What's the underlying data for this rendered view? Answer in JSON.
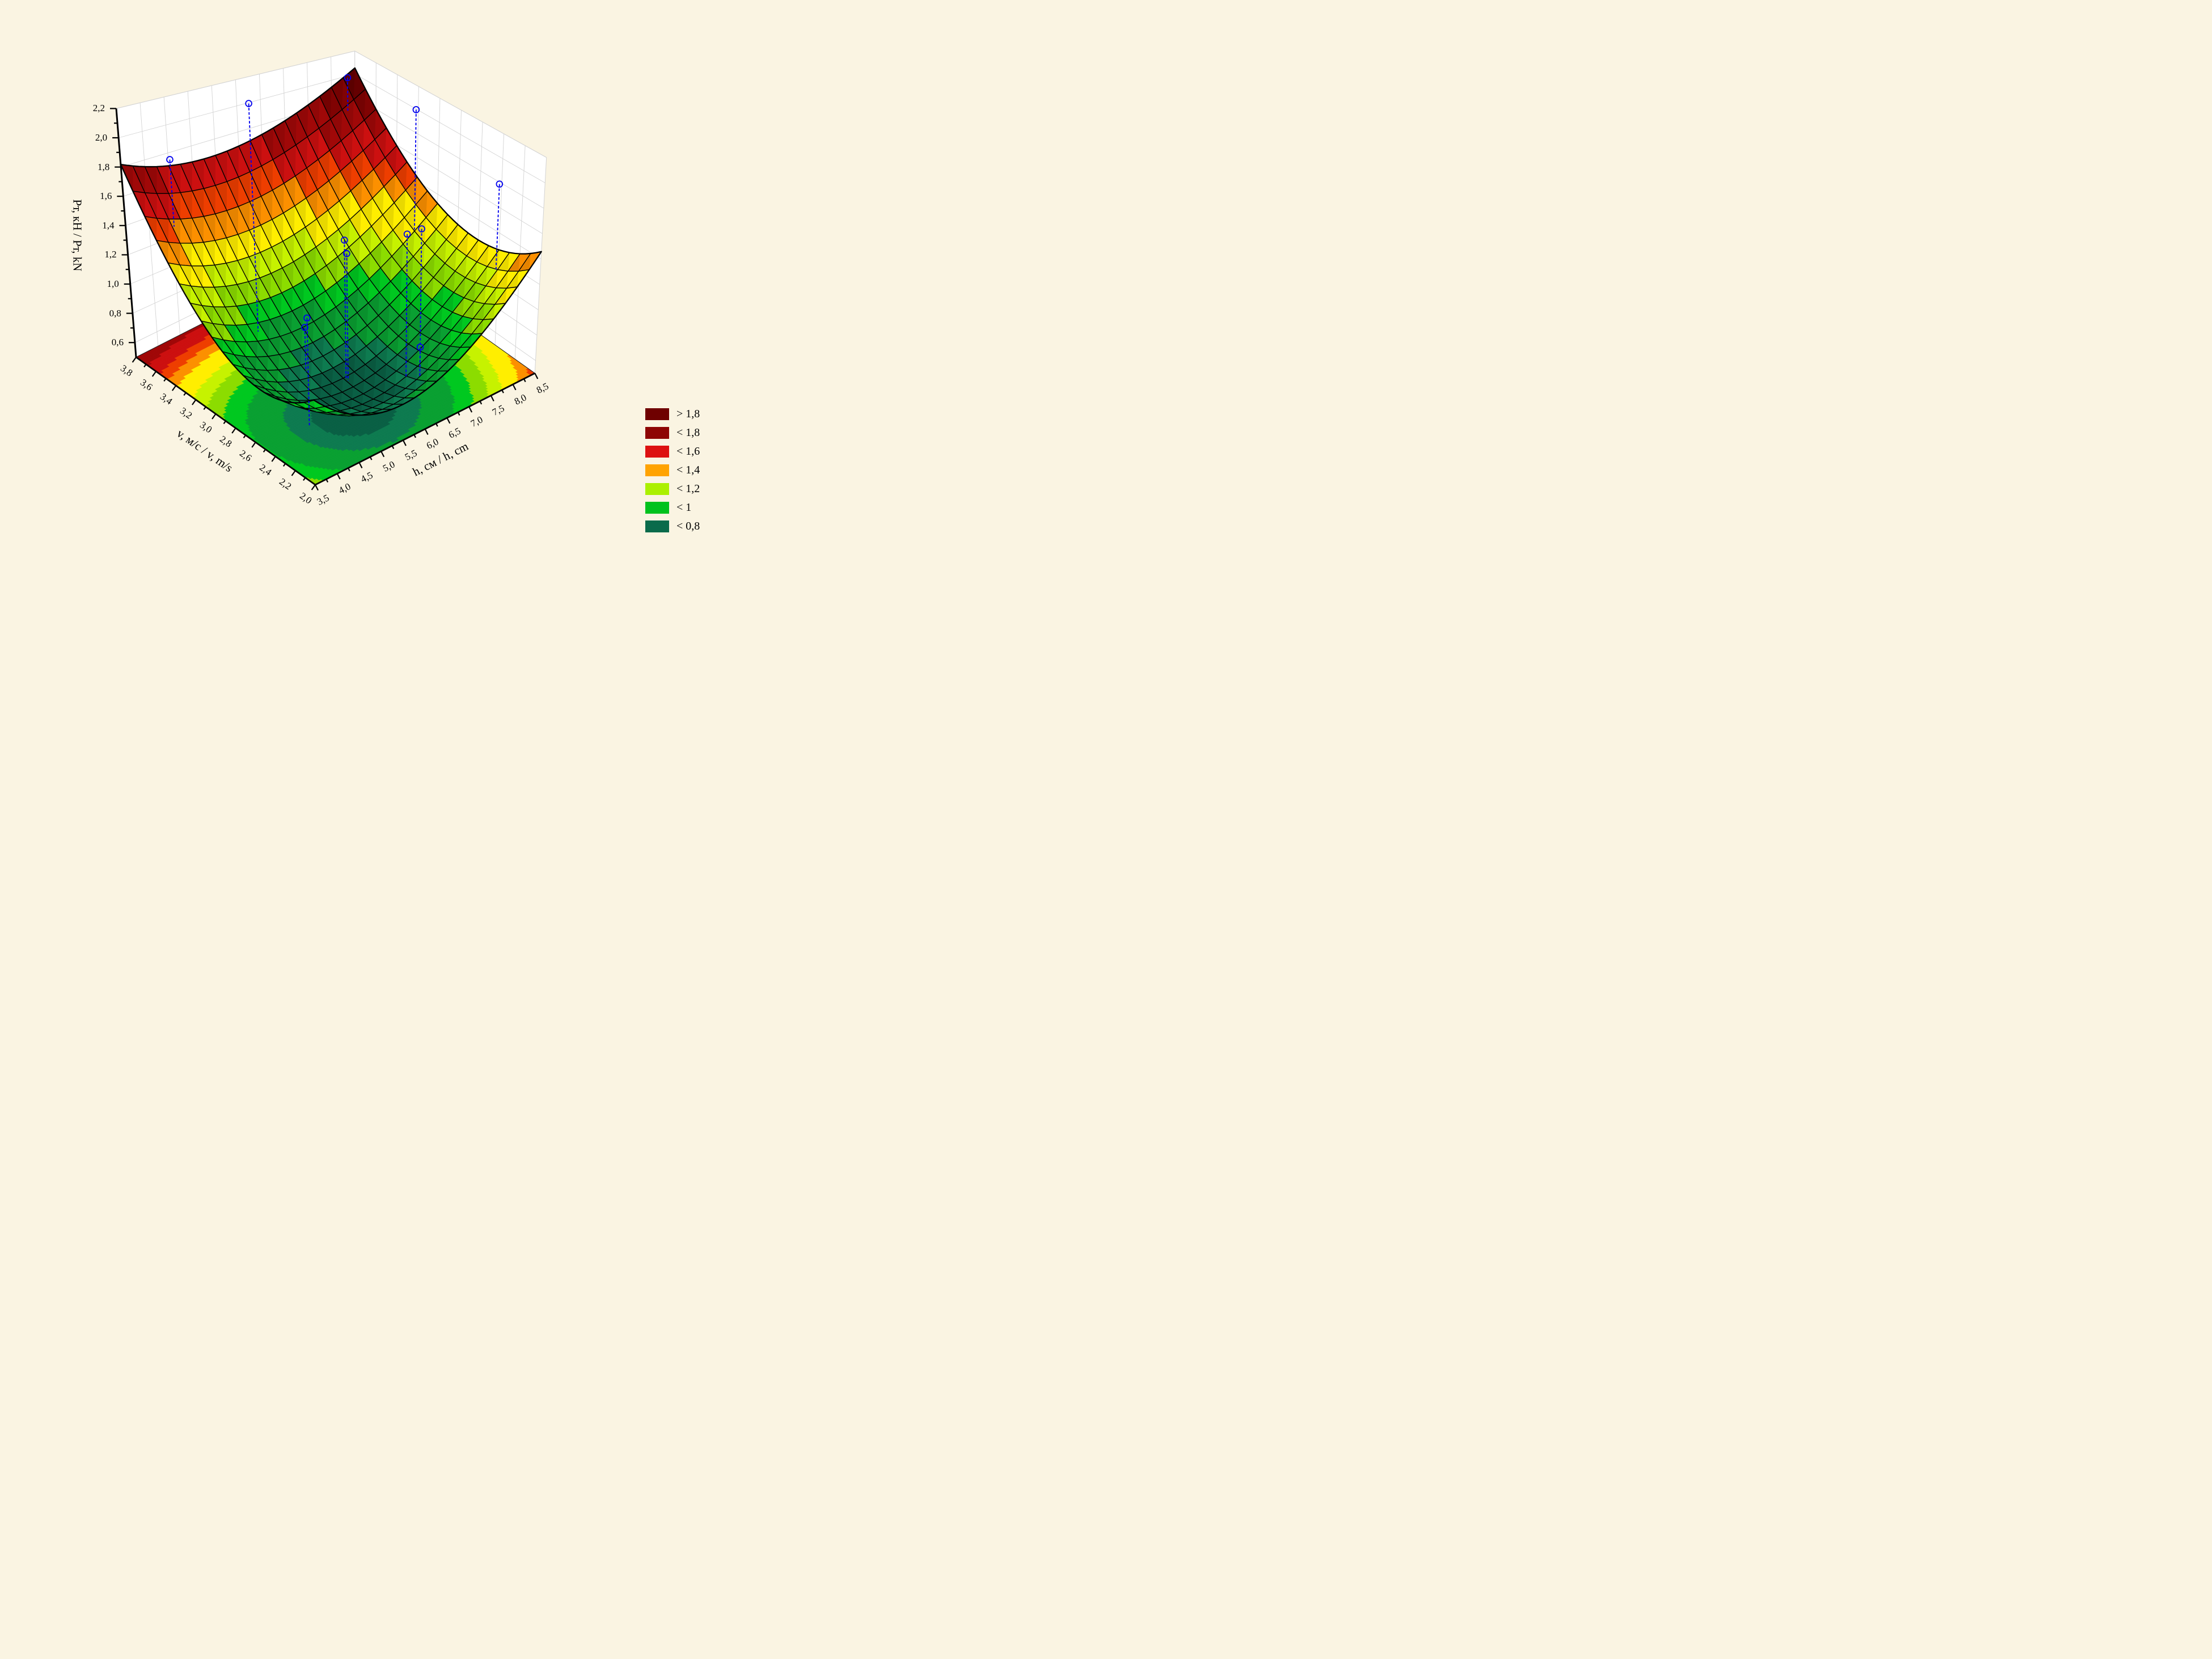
{
  "chart_data": {
    "type": "surface3d_with_contour_floor",
    "title": "",
    "axes": {
      "z": {
        "label": "Pт, кН / Pт, kN",
        "tick_labels": [
          "0,6",
          "0,8",
          "1,0",
          "1,2",
          "1,4",
          "1,6",
          "1,8",
          "2,0",
          "2,2"
        ],
        "tick_values": [
          0.6,
          0.8,
          1.0,
          1.2,
          1.4,
          1.6,
          1.8,
          2.0,
          2.2
        ],
        "minor_step": 0.1,
        "range": [
          0.5,
          2.2
        ]
      },
      "v": {
        "label": "v, м/с / v, m/s",
        "tick_labels": [
          "2,0",
          "2,2",
          "2,4",
          "2,6",
          "2,8",
          "3,0",
          "3,2",
          "3,4",
          "3,6",
          "3,8"
        ],
        "tick_values": [
          2.0,
          2.2,
          2.4,
          2.6,
          2.8,
          3.0,
          3.2,
          3.4,
          3.6,
          3.8
        ],
        "minor_step": 0.1,
        "range": [
          2.0,
          3.8
        ]
      },
      "h": {
        "label": "h, см / h, cm",
        "tick_labels": [
          "3,5",
          "4,0",
          "4,5",
          "5,0",
          "5,5",
          "6,0",
          "6,5",
          "7,0",
          "7,5",
          "8,0",
          "8,5"
        ],
        "tick_values": [
          3.5,
          4.0,
          4.5,
          5.0,
          5.5,
          6.0,
          6.5,
          7.0,
          7.5,
          8.0,
          8.5
        ],
        "minor_step": 0.25,
        "range": [
          3.5,
          8.5
        ]
      }
    },
    "legend": [
      {
        "label": "> 1,8",
        "color": "#6F0000"
      },
      {
        "label": "< 1,8",
        "color": "#8E0505"
      },
      {
        "label": "< 1,6",
        "color": "#DD1111"
      },
      {
        "label": "< 1,4",
        "color": "#FFA300"
      },
      {
        "label": "< 1,2",
        "color": "#ABF000"
      },
      {
        "label": "< 1",
        "color": "#00C21E"
      },
      {
        "label": "< 0,8",
        "color": "#0A6B4B"
      }
    ],
    "surface_model": {
      "description": "z = c0 + cv*(v-vm)^2 + (ch0 - ch1*(v-2.0))*(h-hm)^2",
      "c0": 0.62,
      "cv": 0.58,
      "vm": 2.45,
      "hm": 5.4,
      "ch0": 0.075,
      "ch1": 0.02,
      "z_floor": 0.5,
      "z_top": 2.2,
      "z_min": 0.62,
      "z_peak": 2.05
    },
    "surface_palette": [
      {
        "max": 0.66,
        "color": "#0A6045"
      },
      {
        "max": 0.72,
        "color": "#0E7B50"
      },
      {
        "max": 0.85,
        "color": "#0AA032"
      },
      {
        "max": 0.95,
        "color": "#00C820"
      },
      {
        "max": 1.05,
        "color": "#8CDC00"
      },
      {
        "max": 1.15,
        "color": "#C6F200"
      },
      {
        "max": 1.3,
        "color": "#FFEE00"
      },
      {
        "max": 1.4,
        "color": "#FC9000"
      },
      {
        "max": 1.5,
        "color": "#EE3E00"
      },
      {
        "max": 1.65,
        "color": "#CC1010"
      },
      {
        "max": 1.8,
        "color": "#A00808"
      },
      {
        "max": 1.95,
        "color": "#800303"
      },
      {
        "max": 99,
        "color": "#650001"
      }
    ],
    "points": [
      {
        "h": 4.0,
        "v": 3.55,
        "z": 1.9,
        "z_end": 1.44
      },
      {
        "h": 5.6,
        "v": 3.5,
        "z": 2.18,
        "z_end": 0.5
      },
      {
        "h": 8.3,
        "v": 3.78,
        "z": 2.0,
        "z_end": 1.7
      },
      {
        "h": 8.0,
        "v": 3.0,
        "z": 2.15,
        "z_end": 1.18
      },
      {
        "h": 8.45,
        "v": 2.4,
        "z": 1.8,
        "z_end": 1.1
      },
      {
        "h": 5.9,
        "v": 2.75,
        "z": 1.48,
        "z_end": 0.5
      },
      {
        "h": 5.88,
        "v": 2.72,
        "z": 1.4,
        "z_end": 0.5
      },
      {
        "h": 6.9,
        "v": 2.45,
        "z": 1.59,
        "z_end": 0.5
      },
      {
        "h": 6.7,
        "v": 2.5,
        "z": 1.55,
        "z_end": 0.5
      },
      {
        "h": 5.0,
        "v": 2.75,
        "z": 0.98,
        "z_end": 0.68
      },
      {
        "h": 4.5,
        "v": 2.5,
        "z": 1.21,
        "z_end": 0.5
      },
      {
        "h": 6.9,
        "v": 2.45,
        "z": 0.72,
        "z_end": 0.5
      }
    ],
    "mesh": {
      "h_step": 0.25,
      "v_step": 0.1
    },
    "colors": {
      "background": "#FAF4E2",
      "wall": "#FFFFFF",
      "wall_grid": "#D3D3D3",
      "mesh_line": "#000000",
      "stem": "#0000EE",
      "axis": "#000000"
    }
  }
}
